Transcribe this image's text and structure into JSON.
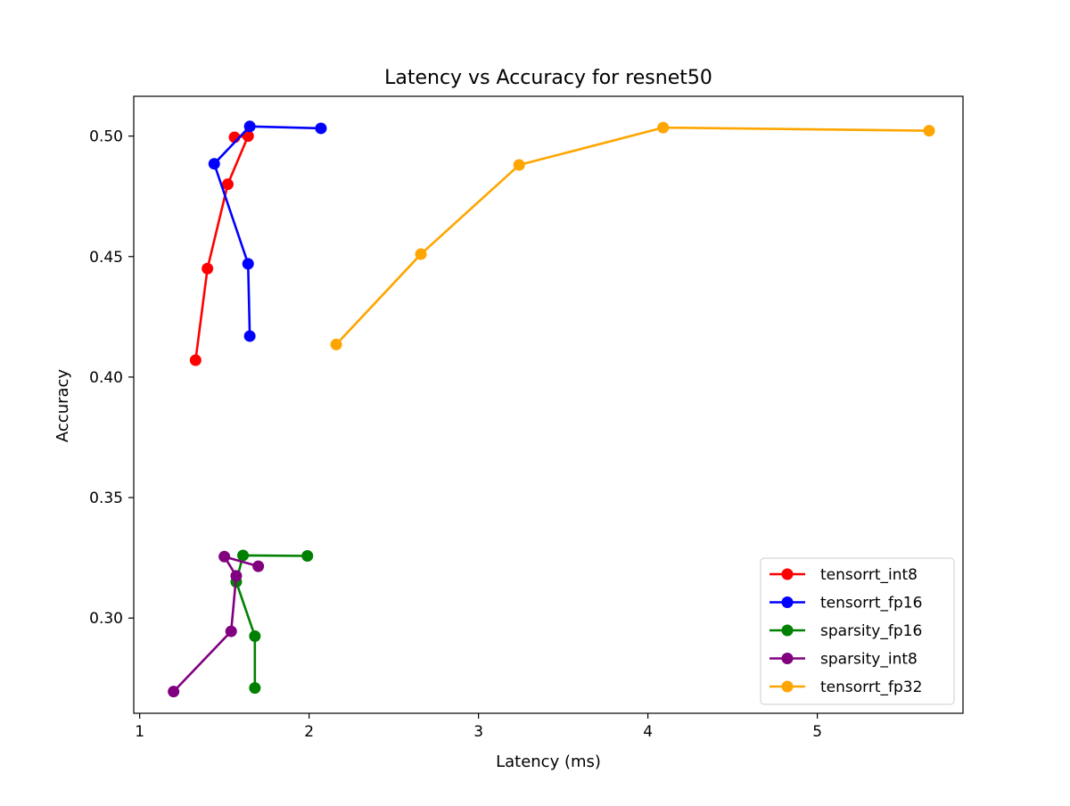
{
  "chart_data": {
    "type": "line",
    "title": "Latency vs Accuracy for resnet50",
    "xlabel": "Latency (ms)",
    "ylabel": "Accuracy",
    "xlim": [
      0.965,
      5.86
    ],
    "ylim": [
      0.2605,
      0.5165
    ],
    "xticks": [
      1,
      2,
      3,
      4,
      5
    ],
    "yticks": [
      0.3,
      0.35,
      0.4,
      0.45,
      0.5
    ],
    "xtick_labels": [
      "1",
      "2",
      "3",
      "4",
      "5"
    ],
    "ytick_labels": [
      "0.30",
      "0.35",
      "0.40",
      "0.45",
      "0.50"
    ],
    "grid": false,
    "legend_position": "lower-right",
    "series": [
      {
        "name": "tensorrt_int8",
        "color": "#ff0000",
        "points": [
          [
            1.33,
            0.407
          ],
          [
            1.4,
            0.445
          ],
          [
            1.52,
            0.48
          ],
          [
            1.64,
            0.5
          ],
          [
            1.56,
            0.4995
          ]
        ]
      },
      {
        "name": "tensorrt_fp16",
        "color": "#0000ff",
        "points": [
          [
            1.65,
            0.417
          ],
          [
            1.64,
            0.447
          ],
          [
            1.44,
            0.4885
          ],
          [
            1.65,
            0.504
          ],
          [
            2.07,
            0.5032
          ]
        ]
      },
      {
        "name": "sparsity_fp16",
        "color": "#008000",
        "points": [
          [
            1.68,
            0.271
          ],
          [
            1.68,
            0.2925
          ],
          [
            1.57,
            0.315
          ],
          [
            1.61,
            0.326
          ],
          [
            1.99,
            0.3258
          ]
        ]
      },
      {
        "name": "sparsity_int8",
        "color": "#800080",
        "points": [
          [
            1.2,
            0.2695
          ],
          [
            1.54,
            0.2945
          ],
          [
            1.57,
            0.3175
          ],
          [
            1.5,
            0.3255
          ],
          [
            1.7,
            0.3215
          ]
        ]
      },
      {
        "name": "tensorrt_fp32",
        "color": "#ffa500",
        "points": [
          [
            2.16,
            0.4135
          ],
          [
            2.66,
            0.451
          ],
          [
            3.24,
            0.488
          ],
          [
            4.09,
            0.5035
          ],
          [
            5.66,
            0.5022
          ]
        ]
      }
    ]
  }
}
